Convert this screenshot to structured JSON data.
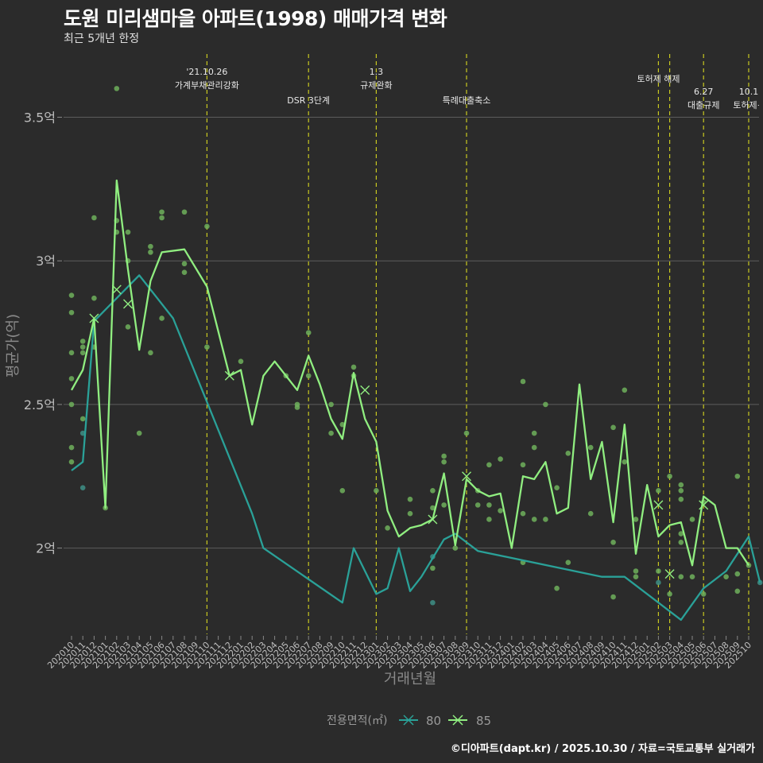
{
  "title": "도원 미리샘마을 아파트(1998) 매매가격 변화",
  "subtitle": "최근 5개년 한정",
  "caption": "©디아파트(dapt.kr) / 2025.10.30 / 자료=국토교통부 실거래가",
  "colors": {
    "background": "#2b2b2b",
    "grid": "#5c5c5c",
    "series80": "#2aa198",
    "series85": "#90ee80",
    "point80": "#3e8f86",
    "point85": "#6fb05c",
    "event": "#c8c820"
  },
  "chart_data": {
    "type": "line",
    "xlabel": "거래년월",
    "ylabel": "평균가(억)",
    "ylim": [
      1.7,
      3.72
    ],
    "yticks": [
      {
        "value": 2.0,
        "label": "2억"
      },
      {
        "value": 2.5,
        "label": "2.5억"
      },
      {
        "value": 3.0,
        "label": "3억"
      },
      {
        "value": 3.5,
        "label": "3.5억"
      }
    ],
    "categories": [
      "202010",
      "202011",
      "202012",
      "202101",
      "202102",
      "202103",
      "202104",
      "202105",
      "202106",
      "202107",
      "202108",
      "202109",
      "202110",
      "202111",
      "202112",
      "202201",
      "202202",
      "202203",
      "202204",
      "202205",
      "202206",
      "202207",
      "202208",
      "202209",
      "202210",
      "202211",
      "202212",
      "202301",
      "202302",
      "202303",
      "202304",
      "202305",
      "202306",
      "202307",
      "202308",
      "202309",
      "202310",
      "202311",
      "202312",
      "202401",
      "202402",
      "202403",
      "202404",
      "202405",
      "202406",
      "202407",
      "202408",
      "202409",
      "202410",
      "202411",
      "202412",
      "202501",
      "202502",
      "202503",
      "202504",
      "202505",
      "202506",
      "202507",
      "202508",
      "202509",
      "202510"
    ],
    "legend": {
      "title": "전용면적(㎡)",
      "items": [
        "80",
        "85"
      ]
    },
    "series": [
      {
        "name": "80",
        "points": [
          [
            0,
            2.27
          ],
          [
            1,
            2.3
          ],
          [
            2,
            2.79
          ],
          [
            6,
            2.95
          ],
          [
            9,
            2.8
          ],
          [
            16,
            2.12
          ],
          [
            17,
            2.0
          ],
          [
            24,
            1.81
          ],
          [
            25,
            2.0
          ],
          [
            27,
            1.84
          ],
          [
            28,
            1.86
          ],
          [
            29,
            2.0
          ],
          [
            30,
            1.85
          ],
          [
            31,
            1.9
          ],
          [
            33,
            2.03
          ],
          [
            34,
            2.05
          ],
          [
            36,
            1.99
          ],
          [
            47,
            1.9
          ],
          [
            49,
            1.9
          ],
          [
            54,
            1.75
          ],
          [
            56,
            1.86
          ],
          [
            58,
            1.92
          ],
          [
            60,
            2.04
          ],
          [
            61,
            1.88
          ]
        ]
      },
      {
        "name": "85",
        "points": [
          [
            0,
            2.55
          ],
          [
            1,
            2.62
          ],
          [
            2,
            2.8
          ],
          [
            3,
            2.14
          ],
          [
            4,
            3.28
          ],
          [
            5,
            2.97
          ],
          [
            6,
            2.69
          ],
          [
            7,
            2.93
          ],
          [
            8,
            3.03
          ],
          [
            10,
            3.04
          ],
          [
            12,
            2.91
          ],
          [
            14,
            2.6
          ],
          [
            15,
            2.62
          ],
          [
            16,
            2.43
          ],
          [
            17,
            2.6
          ],
          [
            18,
            2.65
          ],
          [
            19,
            2.6
          ],
          [
            20,
            2.55
          ],
          [
            21,
            2.67
          ],
          [
            22,
            2.57
          ],
          [
            23,
            2.45
          ],
          [
            24,
            2.38
          ],
          [
            25,
            2.61
          ],
          [
            26,
            2.45
          ],
          [
            27,
            2.37
          ],
          [
            28,
            2.13
          ],
          [
            29,
            2.04
          ],
          [
            30,
            2.07
          ],
          [
            31,
            2.08
          ],
          [
            32,
            2.1
          ],
          [
            33,
            2.26
          ],
          [
            34,
            2.01
          ],
          [
            35,
            2.24
          ],
          [
            36,
            2.2
          ],
          [
            37,
            2.18
          ],
          [
            38,
            2.19
          ],
          [
            39,
            2.0
          ],
          [
            40,
            2.25
          ],
          [
            41,
            2.24
          ],
          [
            42,
            2.3
          ],
          [
            43,
            2.12
          ],
          [
            44,
            2.14
          ],
          [
            45,
            2.57
          ],
          [
            46,
            2.24
          ],
          [
            47,
            2.37
          ],
          [
            48,
            2.09
          ],
          [
            49,
            2.43
          ],
          [
            50,
            1.98
          ],
          [
            51,
            2.22
          ],
          [
            52,
            2.04
          ],
          [
            53,
            2.08
          ],
          [
            54,
            2.09
          ],
          [
            55,
            1.94
          ],
          [
            56,
            2.18
          ],
          [
            57,
            2.15
          ],
          [
            58,
            2.0
          ],
          [
            59,
            2.0
          ],
          [
            60,
            1.94
          ]
        ]
      }
    ],
    "scatter": [
      {
        "series": "85",
        "x": 0,
        "y": 2.88
      },
      {
        "series": "85",
        "x": 0,
        "y": 2.82
      },
      {
        "series": "85",
        "x": 0,
        "y": 2.68
      },
      {
        "series": "85",
        "x": 0,
        "y": 2.59
      },
      {
        "series": "85",
        "x": 0,
        "y": 2.5
      },
      {
        "series": "85",
        "x": 0,
        "y": 2.35
      },
      {
        "series": "85",
        "x": 0,
        "y": 2.3
      },
      {
        "series": "85",
        "x": 1,
        "y": 2.72
      },
      {
        "series": "85",
        "x": 1,
        "y": 2.7
      },
      {
        "series": "85",
        "x": 1,
        "y": 2.68
      },
      {
        "series": "85",
        "x": 1,
        "y": 2.45
      },
      {
        "series": "85",
        "x": 2,
        "y": 3.15
      },
      {
        "series": "85",
        "x": 2,
        "y": 2.87
      },
      {
        "series": "85",
        "x": 2,
        "y": 2.7
      },
      {
        "series": "85",
        "x": 3,
        "y": 2.14
      },
      {
        "series": "85",
        "x": 4,
        "y": 3.6
      },
      {
        "series": "85",
        "x": 4,
        "y": 3.14
      },
      {
        "series": "85",
        "x": 4,
        "y": 3.1
      },
      {
        "series": "85",
        "x": 5,
        "y": 3.1
      },
      {
        "series": "85",
        "x": 5,
        "y": 3.0
      },
      {
        "series": "85",
        "x": 5,
        "y": 2.77
      },
      {
        "series": "85",
        "x": 6,
        "y": 2.4
      },
      {
        "series": "85",
        "x": 7,
        "y": 3.05
      },
      {
        "series": "85",
        "x": 7,
        "y": 3.03
      },
      {
        "series": "85",
        "x": 7,
        "y": 2.68
      },
      {
        "series": "85",
        "x": 8,
        "y": 3.17
      },
      {
        "series": "85",
        "x": 8,
        "y": 3.15
      },
      {
        "series": "85",
        "x": 8,
        "y": 2.8
      },
      {
        "series": "85",
        "x": 10,
        "y": 3.17
      },
      {
        "series": "85",
        "x": 10,
        "y": 2.99
      },
      {
        "series": "85",
        "x": 10,
        "y": 2.96
      },
      {
        "series": "85",
        "x": 12,
        "y": 3.12
      },
      {
        "series": "85",
        "x": 12,
        "y": 2.7
      },
      {
        "series": "85",
        "x": 15,
        "y": 2.65
      },
      {
        "series": "85",
        "x": 19,
        "y": 2.6
      },
      {
        "series": "85",
        "x": 20,
        "y": 2.5
      },
      {
        "series": "85",
        "x": 20,
        "y": 2.49
      },
      {
        "series": "85",
        "x": 21,
        "y": 2.75
      },
      {
        "series": "85",
        "x": 21,
        "y": 2.6
      },
      {
        "series": "85",
        "x": 23,
        "y": 2.5
      },
      {
        "series": "85",
        "x": 23,
        "y": 2.4
      },
      {
        "series": "85",
        "x": 24,
        "y": 2.2
      },
      {
        "series": "85",
        "x": 24,
        "y": 2.43
      },
      {
        "series": "85",
        "x": 25,
        "y": 2.63
      },
      {
        "series": "85",
        "x": 25,
        "y": 2.6
      },
      {
        "series": "85",
        "x": 27,
        "y": 2.2
      },
      {
        "series": "85",
        "x": 28,
        "y": 2.07
      },
      {
        "series": "85",
        "x": 30,
        "y": 2.17
      },
      {
        "series": "85",
        "x": 30,
        "y": 2.12
      },
      {
        "series": "85",
        "x": 32,
        "y": 2.2
      },
      {
        "series": "85",
        "x": 32,
        "y": 2.14
      },
      {
        "series": "85",
        "x": 32,
        "y": 1.93
      },
      {
        "series": "85",
        "x": 33,
        "y": 2.32
      },
      {
        "series": "85",
        "x": 33,
        "y": 2.3
      },
      {
        "series": "85",
        "x": 33,
        "y": 2.15
      },
      {
        "series": "85",
        "x": 34,
        "y": 2.0
      },
      {
        "series": "85",
        "x": 35,
        "y": 2.4
      },
      {
        "series": "85",
        "x": 36,
        "y": 2.2
      },
      {
        "series": "85",
        "x": 36,
        "y": 2.15
      },
      {
        "series": "85",
        "x": 37,
        "y": 2.29
      },
      {
        "series": "85",
        "x": 37,
        "y": 2.15
      },
      {
        "series": "85",
        "x": 37,
        "y": 2.1
      },
      {
        "series": "85",
        "x": 38,
        "y": 2.31
      },
      {
        "series": "85",
        "x": 38,
        "y": 2.13
      },
      {
        "series": "85",
        "x": 40,
        "y": 2.58
      },
      {
        "series": "85",
        "x": 40,
        "y": 2.29
      },
      {
        "series": "85",
        "x": 40,
        "y": 2.12
      },
      {
        "series": "85",
        "x": 40,
        "y": 1.95
      },
      {
        "series": "85",
        "x": 41,
        "y": 2.4
      },
      {
        "series": "85",
        "x": 41,
        "y": 2.35
      },
      {
        "series": "85",
        "x": 41,
        "y": 2.1
      },
      {
        "series": "85",
        "x": 42,
        "y": 2.5
      },
      {
        "series": "85",
        "x": 42,
        "y": 2.1
      },
      {
        "series": "85",
        "x": 43,
        "y": 2.21
      },
      {
        "series": "85",
        "x": 43,
        "y": 1.86
      },
      {
        "series": "85",
        "x": 44,
        "y": 2.33
      },
      {
        "series": "85",
        "x": 44,
        "y": 1.95
      },
      {
        "series": "85",
        "x": 46,
        "y": 2.35
      },
      {
        "series": "85",
        "x": 46,
        "y": 2.12
      },
      {
        "series": "85",
        "x": 48,
        "y": 2.42
      },
      {
        "series": "85",
        "x": 48,
        "y": 2.02
      },
      {
        "series": "85",
        "x": 48,
        "y": 1.83
      },
      {
        "series": "85",
        "x": 49,
        "y": 2.55
      },
      {
        "series": "85",
        "x": 49,
        "y": 2.3
      },
      {
        "series": "85",
        "x": 50,
        "y": 2.1
      },
      {
        "series": "85",
        "x": 50,
        "y": 1.92
      },
      {
        "series": "85",
        "x": 50,
        "y": 1.9
      },
      {
        "series": "85",
        "x": 52,
        "y": 2.2
      },
      {
        "series": "85",
        "x": 52,
        "y": 1.92
      },
      {
        "series": "85",
        "x": 53,
        "y": 2.25
      },
      {
        "series": "85",
        "x": 53,
        "y": 1.84
      },
      {
        "series": "85",
        "x": 54,
        "y": 2.22
      },
      {
        "series": "85",
        "x": 54,
        "y": 2.2
      },
      {
        "series": "85",
        "x": 54,
        "y": 2.17
      },
      {
        "series": "85",
        "x": 54,
        "y": 2.05
      },
      {
        "series": "85",
        "x": 54,
        "y": 2.02
      },
      {
        "series": "85",
        "x": 54,
        "y": 1.9
      },
      {
        "series": "85",
        "x": 55,
        "y": 2.1
      },
      {
        "series": "85",
        "x": 55,
        "y": 1.9
      },
      {
        "series": "85",
        "x": 56,
        "y": 2.16
      },
      {
        "series": "85",
        "x": 56,
        "y": 1.84
      },
      {
        "series": "85",
        "x": 58,
        "y": 1.9
      },
      {
        "series": "85",
        "x": 59,
        "y": 2.25
      },
      {
        "series": "85",
        "x": 59,
        "y": 1.91
      },
      {
        "series": "85",
        "x": 59,
        "y": 1.85
      },
      {
        "series": "85",
        "x": 60,
        "y": 1.94
      },
      {
        "series": "80",
        "x": 1,
        "y": 2.4
      },
      {
        "series": "80",
        "x": 1,
        "y": 2.21
      },
      {
        "series": "80",
        "x": 32,
        "y": 1.97
      },
      {
        "series": "80",
        "x": 32,
        "y": 1.81
      },
      {
        "series": "80",
        "x": 52,
        "y": 1.88
      },
      {
        "series": "80",
        "x": 61,
        "y": 1.88
      }
    ],
    "x_markers": [
      {
        "series": "85",
        "x": 2,
        "y": 2.8
      },
      {
        "series": "85",
        "x": 4,
        "y": 2.9
      },
      {
        "series": "85",
        "x": 5,
        "y": 2.85
      },
      {
        "series": "85",
        "x": 14,
        "y": 2.6
      },
      {
        "series": "85",
        "x": 26,
        "y": 2.55
      },
      {
        "series": "85",
        "x": 32,
        "y": 2.1
      },
      {
        "series": "85",
        "x": 35,
        "y": 2.25
      },
      {
        "series": "85",
        "x": 52,
        "y": 2.15
      },
      {
        "series": "85",
        "x": 53,
        "y": 1.91
      },
      {
        "series": "85",
        "x": 56,
        "y": 2.15
      }
    ],
    "events": [
      {
        "x": 12,
        "label1": "'21.10.26",
        "label2": "가계부채관리강화",
        "row": 1
      },
      {
        "x": 21,
        "label1": "DSR 3단계",
        "label2": "",
        "row": 3
      },
      {
        "x": 27,
        "label1": "1.3",
        "label2": "규제완화",
        "row": 1
      },
      {
        "x": 35,
        "label1": "특례대출축소",
        "label2": "",
        "row": 3
      },
      {
        "x": 52,
        "label1": "토허제 해제",
        "label2": "",
        "row": 2
      },
      {
        "x": 53,
        "label1": "",
        "label2": "",
        "row": 0
      },
      {
        "x": 56,
        "label1": "6.27",
        "label2": "대출규제",
        "row": 4
      },
      {
        "x": 60,
        "label1": "10.1",
        "label2": "토허제+",
        "row": 4
      }
    ]
  }
}
